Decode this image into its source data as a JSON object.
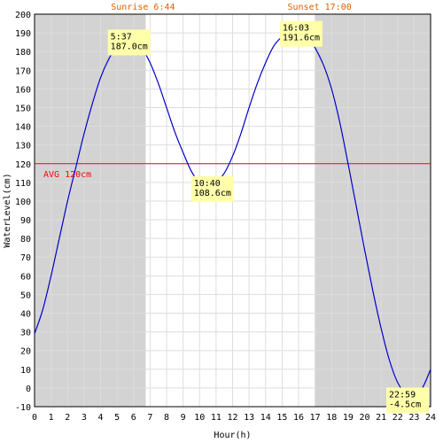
{
  "chart_data": {
    "type": "line",
    "xlabel": "Hour(h)",
    "ylabel": "WaterLevel(cm)",
    "xlim": [
      0,
      24
    ],
    "ylim": [
      -10,
      200
    ],
    "x_ticks": [
      "0",
      "1",
      "2",
      "3",
      "4",
      "5",
      "6",
      "7",
      "8",
      "9",
      "10",
      "11",
      "12",
      "13",
      "14",
      "15",
      "16",
      "17",
      "18",
      "19",
      "20",
      "21",
      "22",
      "23",
      "24"
    ],
    "y_ticks": [
      "-10",
      "0",
      "10",
      "20",
      "30",
      "40",
      "50",
      "60",
      "70",
      "80",
      "90",
      "100",
      "110",
      "120",
      "130",
      "140",
      "150",
      "160",
      "170",
      "180",
      "190",
      "200"
    ],
    "grid": true,
    "sunrise": {
      "label": "Sunrise 6:44",
      "hour": 6.733
    },
    "sunset": {
      "label": "Sunset 17:00",
      "hour": 17.0
    },
    "average": {
      "label": "AVG 120cm",
      "value": 120
    },
    "series": [
      {
        "values": [
          [
            0.0,
            29
          ],
          [
            0.5,
            42
          ],
          [
            1.0,
            60
          ],
          [
            1.5,
            80
          ],
          [
            2.0,
            100
          ],
          [
            2.5,
            118
          ],
          [
            3.0,
            136
          ],
          [
            3.5,
            152
          ],
          [
            4.0,
            166
          ],
          [
            4.5,
            176
          ],
          [
            5.0,
            183
          ],
          [
            5.62,
            187.0
          ],
          [
            6.0,
            186
          ],
          [
            6.5,
            182
          ],
          [
            7.0,
            174
          ],
          [
            7.5,
            163
          ],
          [
            8.0,
            150
          ],
          [
            8.5,
            137
          ],
          [
            9.0,
            126
          ],
          [
            9.5,
            116
          ],
          [
            10.0,
            110
          ],
          [
            10.67,
            108.6
          ],
          [
            11.0,
            110
          ],
          [
            11.5,
            115
          ],
          [
            12.0,
            124
          ],
          [
            12.5,
            136
          ],
          [
            13.0,
            150
          ],
          [
            13.5,
            163
          ],
          [
            14.0,
            174
          ],
          [
            14.5,
            183
          ],
          [
            15.0,
            188
          ],
          [
            15.5,
            191
          ],
          [
            16.05,
            191.6
          ],
          [
            16.5,
            189
          ],
          [
            17.0,
            182
          ],
          [
            17.5,
            173
          ],
          [
            18.0,
            160
          ],
          [
            18.5,
            142
          ],
          [
            19.0,
            120
          ],
          [
            19.5,
            97
          ],
          [
            20.0,
            74
          ],
          [
            20.5,
            52
          ],
          [
            21.0,
            32
          ],
          [
            21.5,
            15
          ],
          [
            22.0,
            3
          ],
          [
            22.5,
            -3
          ],
          [
            22.98,
            -4.5
          ],
          [
            23.5,
            0
          ],
          [
            24.0,
            10
          ]
        ]
      }
    ],
    "annotations": [
      {
        "x": 5.62,
        "y": 187.0,
        "time": "5:37",
        "level": "187.0cm"
      },
      {
        "x": 10.67,
        "y": 108.6,
        "time": "10:40",
        "level": "108.6cm"
      },
      {
        "x": 16.05,
        "y": 191.6,
        "time": "16:03",
        "level": "191.6cm"
      },
      {
        "x": 22.98,
        "y": -4.5,
        "time": "22:59",
        "level": "-4.5cm"
      }
    ],
    "colors": {
      "night_shade": "#d3d3d3",
      "grid": "#dddddd",
      "line": "#0000cc",
      "average": "#ff0000",
      "sun_label": "#e06000",
      "annotation_bg": "#ffffaa"
    }
  }
}
